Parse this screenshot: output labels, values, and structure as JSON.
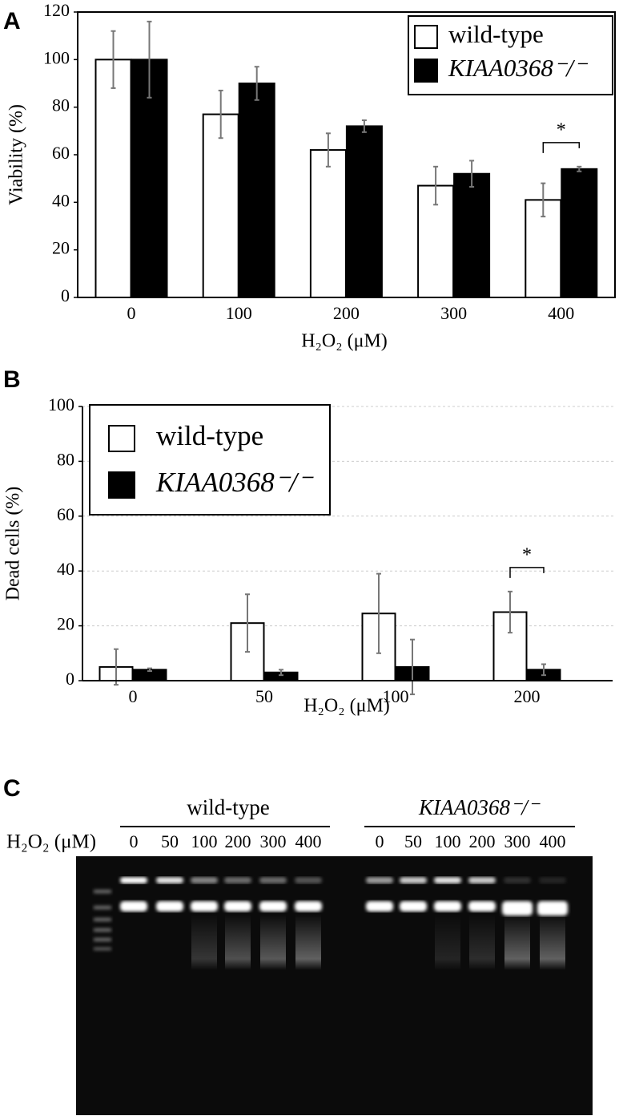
{
  "chart_data": [
    {
      "type": "bar",
      "panel_label": "A",
      "y_label": "Viability (%)",
      "x_label": "H₂O₂ (μM)",
      "categories": [
        "0",
        "100",
        "200",
        "300",
        "400"
      ],
      "series": [
        {
          "name": "wild-type",
          "color": "#ffffff",
          "values": [
            100,
            77,
            62,
            47,
            41
          ],
          "errors": [
            12,
            10,
            7,
            8,
            7
          ]
        },
        {
          "name": "KIAA0368⁻/⁻",
          "color": "#000000",
          "values": [
            100,
            90,
            72,
            52,
            54
          ],
          "errors": [
            16,
            7,
            2.5,
            5.5,
            1
          ]
        }
      ],
      "ylim": [
        0,
        120
      ],
      "yticks": [
        0,
        20,
        40,
        60,
        80,
        100,
        120
      ],
      "grid": false,
      "legend": "upper right",
      "annotations": [
        {
          "text": "*",
          "category": "400"
        }
      ]
    },
    {
      "type": "bar",
      "panel_label": "B",
      "y_label": "Dead cells (%)",
      "x_label": "H₂O₂ (μM)",
      "categories": [
        "0",
        "50",
        "100",
        "200"
      ],
      "series": [
        {
          "name": "wild-type",
          "color": "#ffffff",
          "values": [
            5,
            21,
            24.5,
            25
          ],
          "errors": [
            6.5,
            10.5,
            14.5,
            7.5
          ]
        },
        {
          "name": "KIAA0368⁻/⁻",
          "color": "#000000",
          "values": [
            4,
            3,
            5,
            4
          ],
          "errors": [
            0.5,
            1,
            10,
            2
          ]
        }
      ],
      "ylim": [
        0,
        100
      ],
      "yticks": [
        0,
        20,
        40,
        60,
        80,
        100
      ],
      "grid": true,
      "legend": "upper left",
      "annotations": [
        {
          "text": "*",
          "category": "200"
        }
      ]
    }
  ],
  "gel": {
    "panel_label": "C",
    "axis_label": "H₂O₂ (μM)",
    "groups": [
      {
        "name": "wild-type",
        "lanes": [
          0,
          50,
          100,
          200,
          300,
          400
        ]
      },
      {
        "name": "KIAA0368⁻/⁻",
        "lanes": [
          0,
          50,
          100,
          200,
          300,
          400
        ]
      }
    ]
  }
}
